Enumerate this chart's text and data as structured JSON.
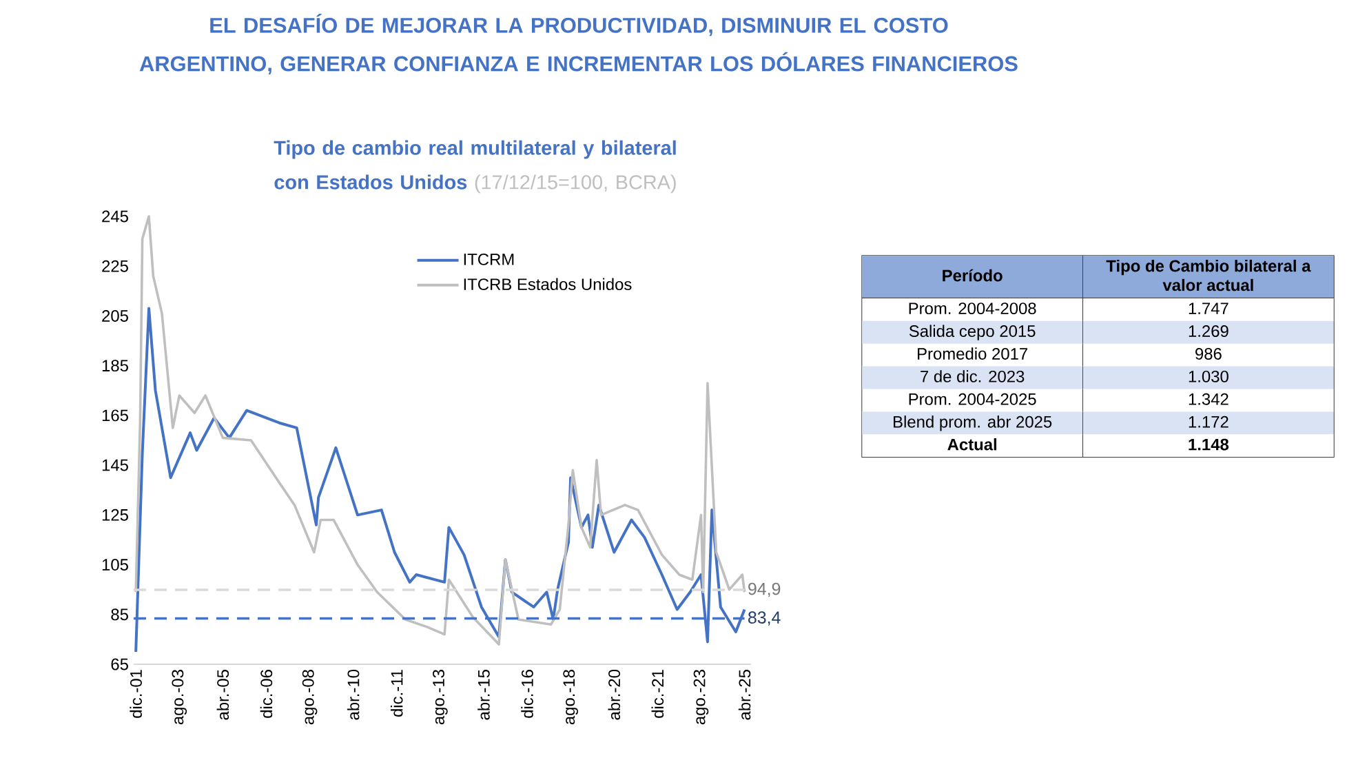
{
  "chart_data": [
    {
      "type": "line",
      "title": "Tipo de cambio real multilateral y bilateral con Estados Unidos",
      "subtitle": "(17/12/15=100, BCRA)",
      "annotations": [
        "EL DESAFÍO DE MEJORAR LA PRODUCTIVIDAD, DISMINUIR EL COSTO ARGENTINO, GENERAR CONFIANZA E INCREMENTAR LOS DÓLARES FINANCIEROS"
      ],
      "series": [
        {
          "name": "ITCRM",
          "color": "#4472c4",
          "x": [
            "2001-12",
            "2002-03",
            "2002-06",
            "2002-09",
            "2003-04",
            "2004-01",
            "2004-04",
            "2004-12",
            "2005-07",
            "2006-03",
            "2007-06",
            "2008-02",
            "2008-11",
            "2008-12",
            "2009-08",
            "2010-06",
            "2011-05",
            "2011-11",
            "2012-06",
            "2012-09",
            "2013-10",
            "2013-12",
            "2014-07",
            "2015-03",
            "2015-11",
            "2016-02",
            "2016-05",
            "2017-03",
            "2017-09",
            "2017-12",
            "2018-02",
            "2018-07",
            "2018-08",
            "2019-01",
            "2019-04",
            "2019-06",
            "2019-09",
            "2020-04",
            "2020-12",
            "2021-06",
            "2022-02",
            "2022-09",
            "2023-03",
            "2023-08",
            "2023-11",
            "2024-01",
            "2024-05",
            "2024-12",
            "2025-04"
          ],
          "values": [
            70,
            150,
            208,
            175,
            140,
            158,
            151,
            164,
            156,
            167,
            162,
            160,
            121,
            132,
            152,
            125,
            127,
            110,
            98,
            101,
            98,
            120,
            109,
            88,
            76,
            107,
            94,
            88,
            94,
            83,
            95,
            114,
            140,
            120,
            125,
            112,
            129,
            110,
            123,
            116,
            101,
            87,
            94,
            101,
            74,
            127,
            88,
            78,
            87
          ]
        },
        {
          "name": "ITCRB Estados Unidos",
          "color": "#bfbfbf",
          "x": [
            "2001-12",
            "2002-02",
            "2002-03",
            "2002-06",
            "2002-08",
            "2002-12",
            "2003-05",
            "2003-08",
            "2004-03",
            "2004-08",
            "2005-04",
            "2006-05",
            "2007-06",
            "2008-01",
            "2008-10",
            "2009-01",
            "2009-07",
            "2010-06",
            "2011-03",
            "2012-04",
            "2013-02",
            "2013-10",
            "2013-12",
            "2014-11",
            "2015-11",
            "2016-02",
            "2016-08",
            "2017-11",
            "2018-03",
            "2018-07",
            "2018-09",
            "2019-01",
            "2019-05",
            "2019-08",
            "2019-10",
            "2020-09",
            "2021-03",
            "2022-02",
            "2022-10",
            "2023-04",
            "2023-08",
            "2023-09",
            "2023-11",
            "2024-03",
            "2024-09",
            "2025-03",
            "2025-04"
          ],
          "values": [
            94,
            164,
            236,
            245,
            221,
            206,
            160,
            173,
            166,
            173,
            156,
            155,
            138,
            129,
            110,
            123,
            123,
            105,
            94,
            83,
            80,
            77,
            99,
            84,
            73,
            107,
            83,
            81,
            87,
            121,
            143,
            120,
            112,
            147,
            125,
            129,
            127,
            109,
            101,
            99,
            125,
            94,
            178,
            110,
            95,
            101,
            94
          ]
        }
      ],
      "ref_lines": [
        {
          "axis": "y",
          "value": 94.9,
          "label": "94,9",
          "color": "#d9d9d9",
          "line_style": "dashed"
        },
        {
          "axis": "y",
          "value": 83.4,
          "label": "83,4",
          "color": "#4472c4",
          "line_style": "dashed"
        }
      ],
      "xlim": [
        "2001-11",
        "2025-07"
      ],
      "xticks": [
        {
          "value": "2001-12",
          "label": "dic.-01"
        },
        {
          "value": "2003-08",
          "label": "ago.-03"
        },
        {
          "value": "2005-04",
          "label": "abr.-05"
        },
        {
          "value": "2006-12",
          "label": "dic.-06"
        },
        {
          "value": "2008-08",
          "label": "ago.-08"
        },
        {
          "value": "2010-04",
          "label": "abr.-10"
        },
        {
          "value": "2011-12",
          "label": "dic.-11"
        },
        {
          "value": "2013-08",
          "label": "ago.-13"
        },
        {
          "value": "2015-04",
          "label": "abr.-15"
        },
        {
          "value": "2016-12",
          "label": "dic.-16"
        },
        {
          "value": "2018-08",
          "label": "ago.-18"
        },
        {
          "value": "2020-04",
          "label": "abr.-20"
        },
        {
          "value": "2021-12",
          "label": "dic.-21"
        },
        {
          "value": "2023-08",
          "label": "ago.-23"
        },
        {
          "value": "2025-04",
          "label": "abr.-25"
        }
      ],
      "ylim": [
        65,
        245
      ],
      "yticks": [
        65,
        85,
        105,
        125,
        145,
        165,
        185,
        205,
        225,
        245
      ],
      "grid": false,
      "legend": "top"
    },
    {
      "type": "other",
      "annotations": [
        "Período",
        "Tipo de Cambio bilateral a valor actual"
      ],
      "categories": [
        "Prom. 2004-2008",
        "Salida cepo 2015",
        "Promedio 2017",
        "7 de dic. 2023",
        "Prom. 2004-2025",
        "Blend prom. abr 2025",
        "Actual"
      ],
      "value_labels": [
        "1.747",
        "1.269",
        "986",
        "1.030",
        "1.342",
        "1.172",
        "1.148"
      ]
    }
  ]
}
